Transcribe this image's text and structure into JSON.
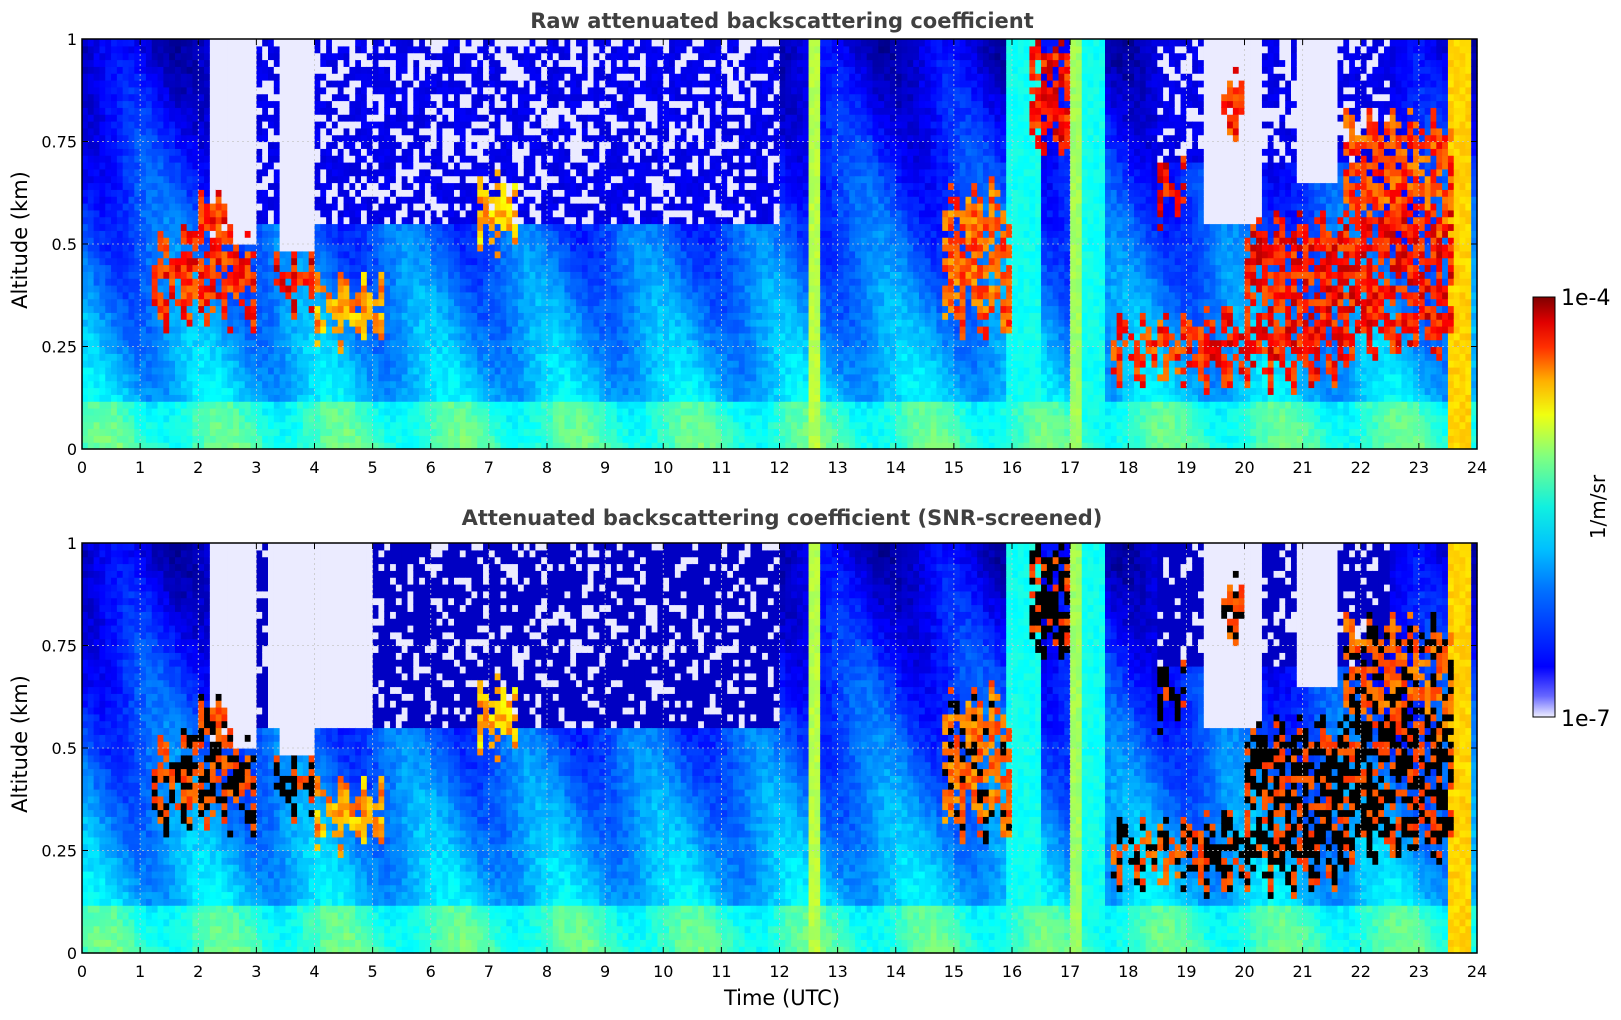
{
  "chart_data": [
    {
      "type": "heatmap",
      "title": "Raw attenuated backscattering coefficient",
      "xlabel": "",
      "ylabel": "Altitude (km)",
      "xlim": [
        0,
        24
      ],
      "ylim": [
        0,
        1
      ],
      "xticks": [
        "0",
        "1",
        "2",
        "3",
        "4",
        "5",
        "6",
        "7",
        "8",
        "9",
        "10",
        "11",
        "12",
        "13",
        "14",
        "15",
        "16",
        "17",
        "18",
        "19",
        "20",
        "21",
        "22",
        "23",
        "24"
      ],
      "yticks": [
        "0",
        "0.25",
        "0.5",
        "0.75",
        "1"
      ],
      "grid": true,
      "screened": false
    },
    {
      "type": "heatmap",
      "title": "Attenuated backscattering coefficient (SNR-screened)",
      "xlabel": "Time (UTC)",
      "ylabel": "Altitude (km)",
      "xlim": [
        0,
        24
      ],
      "ylim": [
        0,
        1
      ],
      "xticks": [
        "0",
        "1",
        "2",
        "3",
        "4",
        "5",
        "6",
        "7",
        "8",
        "9",
        "10",
        "11",
        "12",
        "13",
        "14",
        "15",
        "16",
        "17",
        "18",
        "19",
        "20",
        "21",
        "22",
        "23",
        "24"
      ],
      "yticks": [
        "0",
        "0.25",
        "0.5",
        "0.75",
        "1"
      ],
      "grid": true,
      "screened": true
    }
  ],
  "colorbar": {
    "label": "1/m/sr",
    "max_label": "1e-4",
    "min_label": "1e-7",
    "scale": "log",
    "colormap": "jet"
  },
  "features": {
    "cloud_layers": [
      {
        "t0": 1.2,
        "t1": 3.0,
        "base": 0.33,
        "top": 0.5,
        "peak": 2.2,
        "peak_top": 0.65,
        "val": 0.93
      },
      {
        "t0": 3.3,
        "t1": 4.0,
        "base": 0.36,
        "top": 0.47,
        "val": 0.96
      },
      {
        "t0": 4.0,
        "t1": 5.2,
        "base": 0.28,
        "top": 0.4,
        "val": 0.82
      },
      {
        "t0": 6.8,
        "t1": 7.5,
        "base": 0.5,
        "top": 0.65,
        "val": 0.8
      },
      {
        "t0": 14.8,
        "t1": 16.0,
        "base": 0.3,
        "top": 0.62,
        "val": 0.88
      },
      {
        "t0": 16.3,
        "t1": 17.0,
        "base": 0.75,
        "top": 1.0,
        "val": 0.95
      },
      {
        "t0": 17.7,
        "t1": 19.0,
        "base": 0.19,
        "top": 0.3,
        "val": 0.92
      },
      {
        "t0": 18.5,
        "t1": 19.0,
        "base": 0.58,
        "top": 0.68,
        "val": 0.96
      },
      {
        "t0": 19.0,
        "t1": 21.8,
        "base": 0.18,
        "top": 0.32,
        "val": 0.94
      },
      {
        "t0": 19.6,
        "t1": 20.0,
        "base": 0.78,
        "top": 0.9,
        "val": 0.92
      },
      {
        "t0": 20.0,
        "t1": 23.6,
        "base": 0.25,
        "top": 0.55,
        "val": 0.95
      },
      {
        "t0": 21.7,
        "t1": 23.6,
        "base": 0.55,
        "top": 0.8,
        "val": 0.9
      }
    ],
    "vertical_bands": [
      {
        "t0": 12.48,
        "t1": 12.72,
        "val": 0.6
      },
      {
        "t0": 15.9,
        "t1": 16.5,
        "val": 0.45
      },
      {
        "t0": 17.0,
        "t1": 17.2,
        "val": 0.58
      },
      {
        "t0": 17.2,
        "t1": 17.6,
        "val": 0.45
      },
      {
        "t0": 23.55,
        "t1": 23.85,
        "val": 0.7
      }
    ],
    "clear_gaps": [
      {
        "t0": 2.2,
        "t1": 2.95,
        "base": 0.5
      },
      {
        "t0": 3.4,
        "t1": 4.0,
        "base": 0.48
      },
      {
        "t0": 19.3,
        "t1": 20.3,
        "base": 0.55
      },
      {
        "t0": 20.9,
        "t1": 21.6,
        "base": 0.65
      }
    ]
  }
}
